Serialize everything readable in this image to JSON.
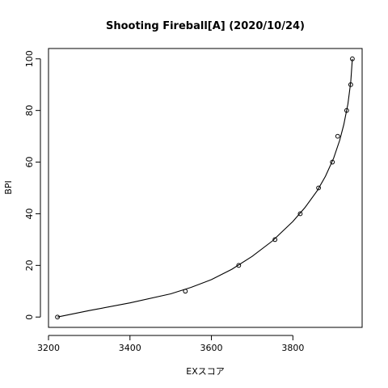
{
  "chart_data": {
    "type": "scatter",
    "title": "Shooting Fireball[A] (2020/10/24)",
    "xlabel": "EXスコア",
    "ylabel": "BPI",
    "xlim": [
      3200,
      3970
    ],
    "ylim": [
      -4,
      104
    ],
    "x_ticks": [
      3200,
      3400,
      3600,
      3800
    ],
    "y_ticks": [
      0,
      20,
      40,
      60,
      80,
      100
    ],
    "grid": false,
    "legend": "none",
    "points": [
      {
        "x": 3222,
        "y": 0
      },
      {
        "x": 3536,
        "y": 10
      },
      {
        "x": 3667,
        "y": 20
      },
      {
        "x": 3756,
        "y": 30
      },
      {
        "x": 3818,
        "y": 40
      },
      {
        "x": 3863,
        "y": 50
      },
      {
        "x": 3897,
        "y": 60
      },
      {
        "x": 3910,
        "y": 70
      },
      {
        "x": 3932,
        "y": 80
      },
      {
        "x": 3942,
        "y": 90
      },
      {
        "x": 3946,
        "y": 100
      }
    ],
    "curve": {
      "type": "fitted",
      "points": [
        {
          "x": 3222,
          "y": 0
        },
        {
          "x": 3300,
          "y": 2.5
        },
        {
          "x": 3400,
          "y": 5.5
        },
        {
          "x": 3500,
          "y": 9
        },
        {
          "x": 3550,
          "y": 11.5
        },
        {
          "x": 3600,
          "y": 14.5
        },
        {
          "x": 3650,
          "y": 18.5
        },
        {
          "x": 3700,
          "y": 23.5
        },
        {
          "x": 3750,
          "y": 29.5
        },
        {
          "x": 3800,
          "y": 37
        },
        {
          "x": 3830,
          "y": 42.5
        },
        {
          "x": 3860,
          "y": 49
        },
        {
          "x": 3880,
          "y": 54.5
        },
        {
          "x": 3900,
          "y": 61.5
        },
        {
          "x": 3915,
          "y": 68.5
        },
        {
          "x": 3925,
          "y": 74.5
        },
        {
          "x": 3935,
          "y": 82.5
        },
        {
          "x": 3942,
          "y": 91
        },
        {
          "x": 3946,
          "y": 100
        }
      ]
    }
  }
}
